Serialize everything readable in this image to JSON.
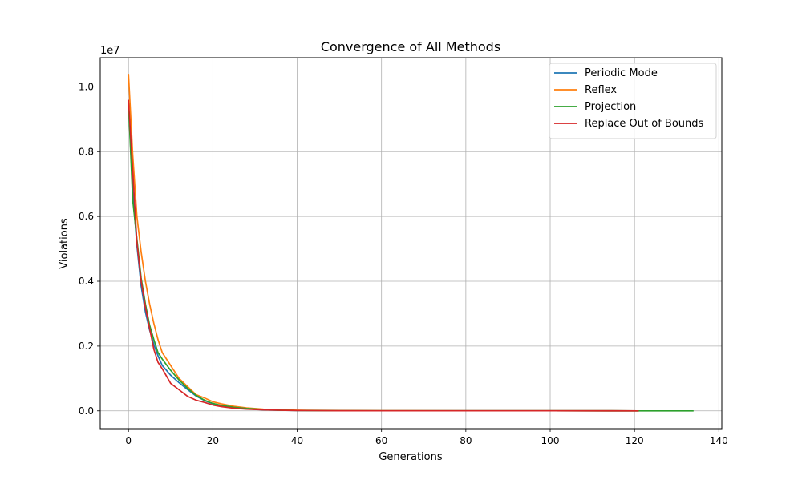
{
  "chart_data": {
    "type": "line",
    "title": "Convergence of All Methods",
    "xlabel": "Generations",
    "ylabel": "Violations",
    "y_offset_label": "1e7",
    "xlim": [
      -6.7,
      140.7
    ],
    "ylim": [
      -0.055,
      1.09
    ],
    "x_ticks": [
      0,
      20,
      40,
      60,
      80,
      100,
      120,
      140
    ],
    "x_tick_labels": [
      "0",
      "20",
      "40",
      "60",
      "80",
      "100",
      "120",
      "140"
    ],
    "y_ticks": [
      0.0,
      0.2,
      0.4,
      0.6,
      0.8,
      1.0
    ],
    "y_tick_labels": [
      "0.0",
      "0.2",
      "0.4",
      "0.6",
      "0.8",
      "1.0"
    ],
    "grid": true,
    "legend_position": "top-right",
    "series": [
      {
        "name": "Periodic Mode",
        "color": "#1f77b4",
        "x": [
          0,
          1,
          2,
          3,
          4,
          5,
          6,
          7,
          8,
          10,
          12,
          14,
          16,
          18,
          20,
          22,
          25,
          28,
          32,
          36,
          40,
          50,
          60,
          80,
          100,
          121
        ],
        "y": [
          0.95,
          0.68,
          0.51,
          0.385,
          0.305,
          0.25,
          0.205,
          0.17,
          0.14,
          0.11,
          0.087,
          0.066,
          0.046,
          0.032,
          0.022,
          0.016,
          0.01,
          0.006,
          0.003,
          0.002,
          0.001,
          0.0004,
          0.0002,
          0.0001,
          5e-05,
          0.0
        ]
      },
      {
        "name": "Reflex",
        "color": "#ff7f0e",
        "x": [
          0,
          1,
          2,
          3,
          4,
          5,
          6,
          7,
          8,
          10,
          12,
          14,
          16,
          18,
          20,
          22,
          25,
          28,
          32,
          36,
          40,
          50,
          60,
          80,
          100,
          121
        ],
        "y": [
          1.04,
          0.79,
          0.6,
          0.49,
          0.4,
          0.33,
          0.27,
          0.22,
          0.18,
          0.14,
          0.1,
          0.075,
          0.05,
          0.04,
          0.028,
          0.022,
          0.014,
          0.009,
          0.005,
          0.003,
          0.002,
          0.0008,
          0.0004,
          0.0002,
          0.0001,
          0.0
        ]
      },
      {
        "name": "Projection",
        "color": "#2ca02c",
        "x": [
          0,
          1,
          2,
          3,
          4,
          5,
          6,
          7,
          8,
          10,
          12,
          14,
          16,
          18,
          20,
          22,
          25,
          28,
          32,
          36,
          40,
          50,
          60,
          80,
          100,
          120,
          134
        ],
        "y": [
          0.95,
          0.65,
          0.53,
          0.41,
          0.33,
          0.265,
          0.22,
          0.18,
          0.16,
          0.125,
          0.095,
          0.07,
          0.048,
          0.033,
          0.023,
          0.017,
          0.011,
          0.007,
          0.004,
          0.002,
          0.0012,
          0.0005,
          0.0002,
          0.0001,
          5e-05,
          2e-05,
          0.0
        ]
      },
      {
        "name": "Replace Out of Bounds",
        "color": "#d62728",
        "x": [
          0,
          1,
          2,
          3,
          4,
          5,
          6,
          7,
          8,
          10,
          12,
          14,
          16,
          18,
          20,
          22,
          25,
          28,
          32,
          36,
          40,
          50,
          60,
          80,
          100,
          121
        ],
        "y": [
          0.96,
          0.74,
          0.52,
          0.4,
          0.32,
          0.255,
          0.19,
          0.15,
          0.13,
          0.085,
          0.065,
          0.045,
          0.033,
          0.026,
          0.018,
          0.013,
          0.008,
          0.005,
          0.003,
          0.002,
          0.001,
          0.0004,
          0.0002,
          0.0001,
          5e-05,
          0.0
        ]
      }
    ]
  }
}
